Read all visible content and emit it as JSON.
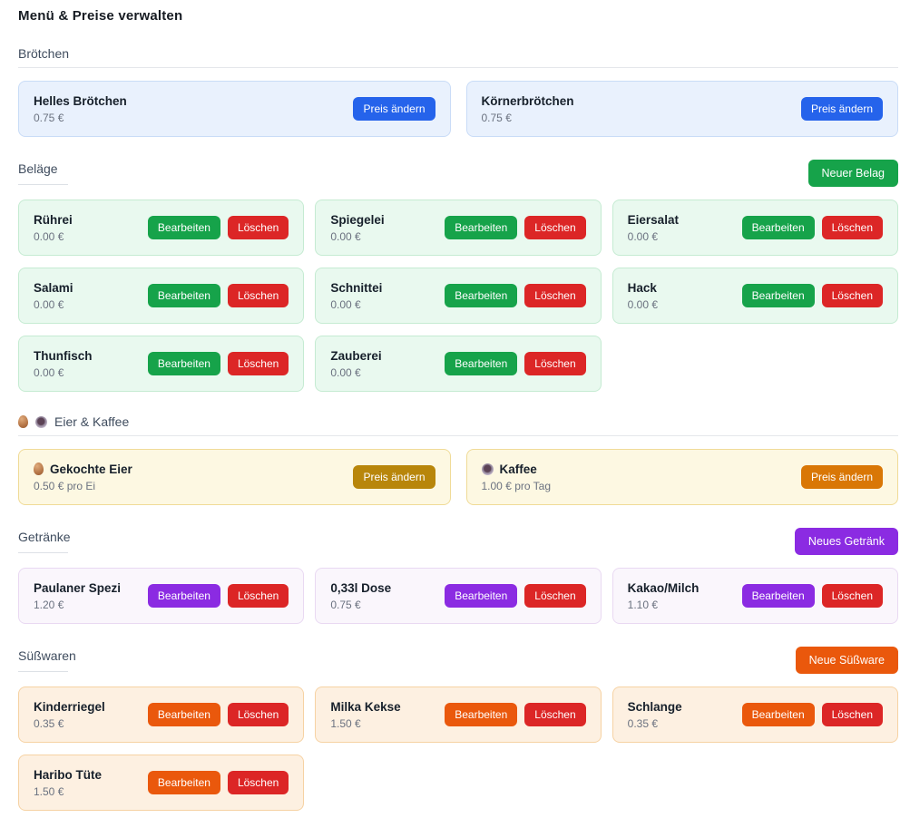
{
  "page": {
    "title": "Menü & Preise verwalten"
  },
  "labels": {
    "change_price": "Preis ändern",
    "edit": "Bearbeiten",
    "delete": "Löschen"
  },
  "colors": {
    "blue_accent": "#2563eb",
    "green_accent": "#16a34a",
    "red_accent": "#dc2626",
    "amber_accent": "#b8860b",
    "orange_dark_accent": "#d97706",
    "purple_accent": "#8b2be2",
    "orange_accent": "#ea580c"
  },
  "sections": {
    "broetchen": {
      "title": "Brötchen",
      "items": [
        {
          "name": "Helles Brötchen",
          "price": "0.75 €"
        },
        {
          "name": "Körnerbrötchen",
          "price": "0.75 €"
        }
      ]
    },
    "belaege": {
      "title": "Beläge",
      "add_button": "Neuer Belag",
      "items": [
        {
          "name": "Rührei",
          "price": "0.00 €"
        },
        {
          "name": "Spiegelei",
          "price": "0.00 €"
        },
        {
          "name": "Eiersalat",
          "price": "0.00 €"
        },
        {
          "name": "Salami",
          "price": "0.00 €"
        },
        {
          "name": "Schnittei",
          "price": "0.00 €"
        },
        {
          "name": "Hack",
          "price": "0.00 €"
        },
        {
          "name": "Thunfisch",
          "price": "0.00 €"
        },
        {
          "name": "Zauberei",
          "price": "0.00 €"
        }
      ]
    },
    "eier_kaffee": {
      "title": "Eier & Kaffee",
      "title_icons": [
        "egg-icon",
        "coffee-icon"
      ],
      "items": [
        {
          "icon": "egg-icon",
          "name": "Gekochte Eier",
          "price": "0.50 € pro Ei"
        },
        {
          "icon": "coffee-icon",
          "name": "Kaffee",
          "price": "1.00 € pro Tag"
        }
      ]
    },
    "getraenke": {
      "title": "Getränke",
      "add_button": "Neues Getränk",
      "items": [
        {
          "name": "Paulaner Spezi",
          "price": "1.20 €"
        },
        {
          "name": "0,33l Dose",
          "price": "0.75 €"
        },
        {
          "name": "Kakao/Milch",
          "price": "1.10 €"
        }
      ]
    },
    "suesswaren": {
      "title": "Süßwaren",
      "add_button": "Neue Süßware",
      "items": [
        {
          "name": "Kinderriegel",
          "price": "0.35 €"
        },
        {
          "name": "Milka Kekse",
          "price": "1.50 €"
        },
        {
          "name": "Schlange",
          "price": "0.35 €"
        },
        {
          "name": "Haribo Tüte",
          "price": "1.50 €"
        }
      ]
    }
  }
}
